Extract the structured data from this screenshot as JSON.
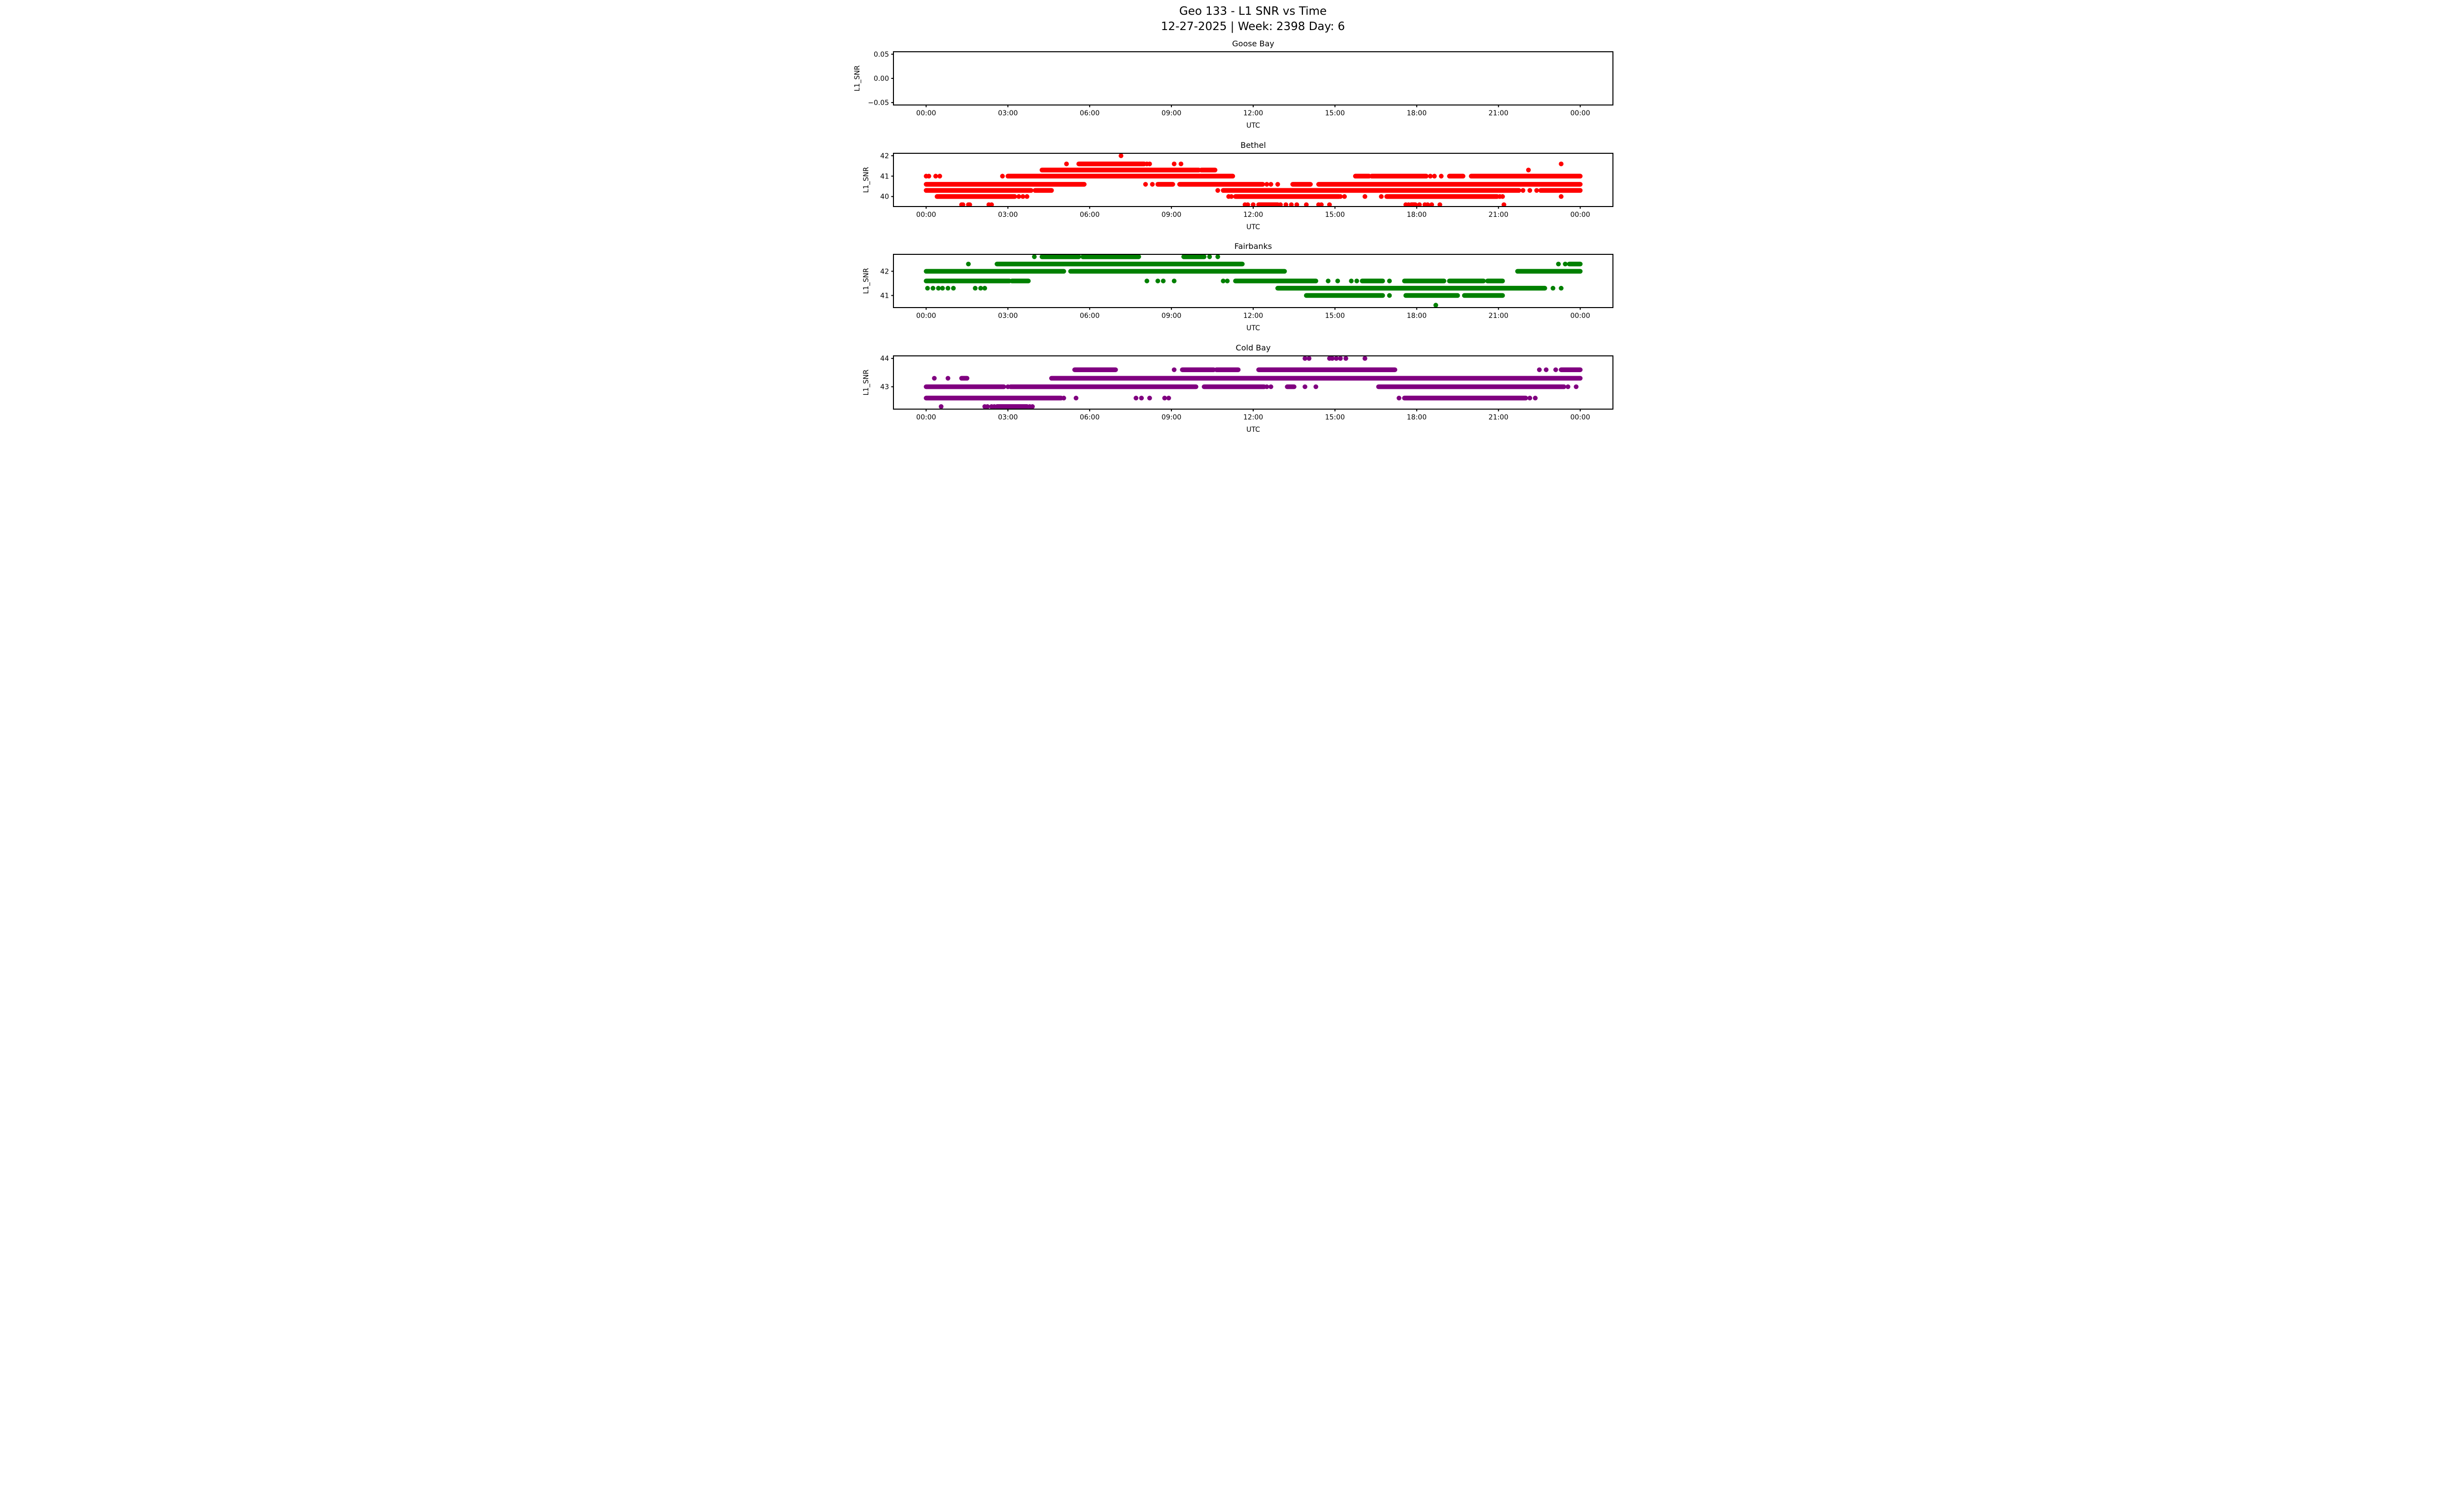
{
  "figure": {
    "title_line1": "Geo 133 - L1 SNR vs Time",
    "title_line2": "12-27-2025 | Week: 2398 Day: 6",
    "background": "#ffffff",
    "text_color": "#000000",
    "axis_color": "#000000"
  },
  "x_axis": {
    "label": "UTC",
    "lim": [
      -1.2,
      25.2
    ],
    "ticks": [
      {
        "t": 0,
        "label": "00:00"
      },
      {
        "t": 3,
        "label": "03:00"
      },
      {
        "t": 6,
        "label": "06:00"
      },
      {
        "t": 9,
        "label": "09:00"
      },
      {
        "t": 12,
        "label": "12:00"
      },
      {
        "t": 15,
        "label": "15:00"
      },
      {
        "t": 18,
        "label": "18:00"
      },
      {
        "t": 21,
        "label": "21:00"
      },
      {
        "t": 24,
        "label": "00:00"
      }
    ]
  },
  "chart_data": [
    {
      "type": "scatter",
      "title": "Goose Bay",
      "xlabel": "UTC",
      "ylabel": "L1_SNR",
      "color": "#000000",
      "ylim": [
        -0.055,
        0.055
      ],
      "yticks": [
        {
          "v": 0.05,
          "label": "0.05"
        },
        {
          "v": 0.0,
          "label": "0.00"
        },
        {
          "v": -0.05,
          "label": "−0.05"
        }
      ],
      "rows": []
    },
    {
      "type": "scatter",
      "title": "Bethel",
      "xlabel": "UTC",
      "ylabel": "L1_SNR",
      "color": "#ff0000",
      "ylim": [
        39.51,
        42.12
      ],
      "yticks": [
        {
          "v": 42,
          "label": "42"
        },
        {
          "v": 41,
          "label": "41"
        },
        {
          "v": 40,
          "label": "40"
        }
      ],
      "rows": [
        {
          "v": 42.0,
          "dots": [
            7.15
          ],
          "segs": []
        },
        {
          "v": 41.6,
          "dots": [
            5.15,
            8.1,
            8.2,
            9.1,
            9.35,
            23.3
          ],
          "segs": [
            [
              5.6,
              8.0
            ]
          ]
        },
        {
          "v": 41.3,
          "dots": [
            22.1
          ],
          "segs": [
            [
              4.25,
              10.0
            ],
            [
              10.1,
              10.6
            ]
          ]
        },
        {
          "v": 41.0,
          "dots": [
            0.0,
            0.1,
            0.35,
            0.5,
            2.8,
            18.5,
            18.65,
            18.9
          ],
          "segs": [
            [
              3.0,
              11.25
            ],
            [
              15.75,
              16.25
            ],
            [
              16.35,
              18.35
            ],
            [
              19.2,
              19.7
            ],
            [
              20.0,
              24.0
            ]
          ]
        },
        {
          "v": 40.6,
          "dots": [
            8.05,
            8.3,
            12.5,
            12.65,
            12.9
          ],
          "segs": [
            [
              0.0,
              5.8
            ],
            [
              8.5,
              9.05
            ],
            [
              9.3,
              12.35
            ],
            [
              13.45,
              14.1
            ],
            [
              14.4,
              24.0
            ]
          ]
        },
        {
          "v": 40.3,
          "dots": [
            10.7,
            21.9,
            22.15,
            22.4
          ],
          "segs": [
            [
              0.0,
              3.85
            ],
            [
              4.0,
              4.6
            ],
            [
              10.9,
              21.75
            ],
            [
              22.55,
              24.0
            ]
          ]
        },
        {
          "v": 40.0,
          "dots": [
            3.4,
            3.55,
            3.7,
            11.1,
            11.2,
            15.2,
            15.35,
            16.1,
            16.7,
            21.05,
            21.15,
            23.3
          ],
          "segs": [
            [
              0.4,
              3.25
            ],
            [
              11.35,
              15.15
            ],
            [
              16.9,
              20.95
            ]
          ]
        },
        {
          "v": 39.6,
          "dots": [
            1.3,
            1.35,
            1.55,
            1.6,
            2.3,
            2.4,
            11.7,
            11.8,
            12.0,
            13.0,
            13.2,
            13.4,
            13.6,
            13.95,
            14.4,
            14.5,
            14.8,
            17.6,
            17.7,
            18.1,
            18.3,
            18.4,
            18.55,
            18.85,
            21.2
          ],
          "segs": [
            [
              12.2,
              12.9
            ],
            [
              17.8,
              17.95
            ]
          ]
        }
      ]
    },
    {
      "type": "scatter",
      "title": "Fairbanks",
      "xlabel": "UTC",
      "ylabel": "L1_SNR",
      "color": "#008000",
      "ylim": [
        40.5,
        42.7
      ],
      "yticks": [
        {
          "v": 42,
          "label": "42"
        },
        {
          "v": 41,
          "label": "41"
        }
      ],
      "rows": [
        {
          "v": 42.6,
          "dots": [
            3.97,
            10.4,
            10.7
          ],
          "segs": [
            [
              4.25,
              5.6
            ],
            [
              5.75,
              7.8
            ],
            [
              9.45,
              10.2
            ]
          ]
        },
        {
          "v": 42.3,
          "dots": [
            1.55,
            23.2,
            23.45
          ],
          "segs": [
            [
              2.6,
              11.6
            ],
            [
              23.6,
              24.0
            ]
          ]
        },
        {
          "v": 42.0,
          "dots": [],
          "segs": [
            [
              0.0,
              5.05
            ],
            [
              5.3,
              13.15
            ],
            [
              21.7,
              24.0
            ]
          ]
        },
        {
          "v": 41.6,
          "dots": [
            8.1,
            8.5,
            8.7,
            9.1,
            10.9,
            11.05,
            14.75,
            15.1,
            15.6,
            15.8,
            17.0
          ],
          "segs": [
            [
              0.0,
              3.05
            ],
            [
              3.15,
              3.75
            ],
            [
              11.35,
              14.3
            ],
            [
              16.0,
              16.75
            ],
            [
              17.55,
              19.0
            ],
            [
              19.2,
              20.45
            ],
            [
              20.6,
              21.15
            ]
          ]
        },
        {
          "v": 41.3,
          "dots": [
            0.05,
            0.25,
            0.45,
            0.6,
            0.8,
            1.0,
            1.8,
            2.0,
            2.15,
            23.0,
            23.3
          ],
          "segs": [
            [
              12.9,
              22.7
            ]
          ]
        },
        {
          "v": 41.0,
          "dots": [
            17.0
          ],
          "segs": [
            [
              13.95,
              16.75
            ],
            [
              17.6,
              19.5
            ],
            [
              19.75,
              21.15
            ]
          ]
        },
        {
          "v": 40.6,
          "dots": [
            18.7
          ],
          "segs": []
        }
      ]
    },
    {
      "type": "scatter",
      "title": "Cold Bay",
      "xlabel": "UTC",
      "ylabel": "L1_SNR",
      "color": "#800080",
      "ylim": [
        42.21,
        44.09
      ],
      "yticks": [
        {
          "v": 44,
          "label": "44"
        },
        {
          "v": 43,
          "label": "43"
        }
      ],
      "rows": [
        {
          "v": 44.0,
          "dots": [
            13.9,
            14.05,
            14.8,
            14.9,
            15.05,
            15.2,
            15.4,
            16.1
          ],
          "segs": []
        },
        {
          "v": 43.6,
          "dots": [
            9.1,
            22.5,
            22.75,
            23.1
          ],
          "segs": [
            [
              5.45,
              6.95
            ],
            [
              9.4,
              10.55
            ],
            [
              10.65,
              11.45
            ],
            [
              12.2,
              17.2
            ],
            [
              23.3,
              24.0
            ]
          ]
        },
        {
          "v": 43.3,
          "dots": [
            0.3,
            0.8
          ],
          "segs": [
            [
              1.3,
              1.5
            ],
            [
              4.6,
              24.0
            ]
          ]
        },
        {
          "v": 43.0,
          "dots": [
            3.0,
            12.5,
            12.65,
            13.9,
            14.3,
            23.55,
            23.85
          ],
          "segs": [
            [
              0.0,
              2.85
            ],
            [
              3.1,
              9.9
            ],
            [
              10.2,
              12.4
            ],
            [
              13.25,
              13.5
            ],
            [
              16.6,
              23.4
            ]
          ]
        },
        {
          "v": 42.6,
          "dots": [
            5.05,
            5.5,
            7.7,
            7.9,
            8.2,
            8.75,
            8.9,
            17.35,
            22.15,
            22.35
          ],
          "segs": [
            [
              0.0,
              4.95
            ],
            [
              17.55,
              22.0
            ]
          ]
        },
        {
          "v": 42.3,
          "dots": [
            0.55,
            2.15,
            2.25,
            2.4,
            2.5,
            3.8,
            3.9
          ],
          "segs": [
            [
              2.6,
              3.7
            ]
          ]
        }
      ]
    }
  ]
}
